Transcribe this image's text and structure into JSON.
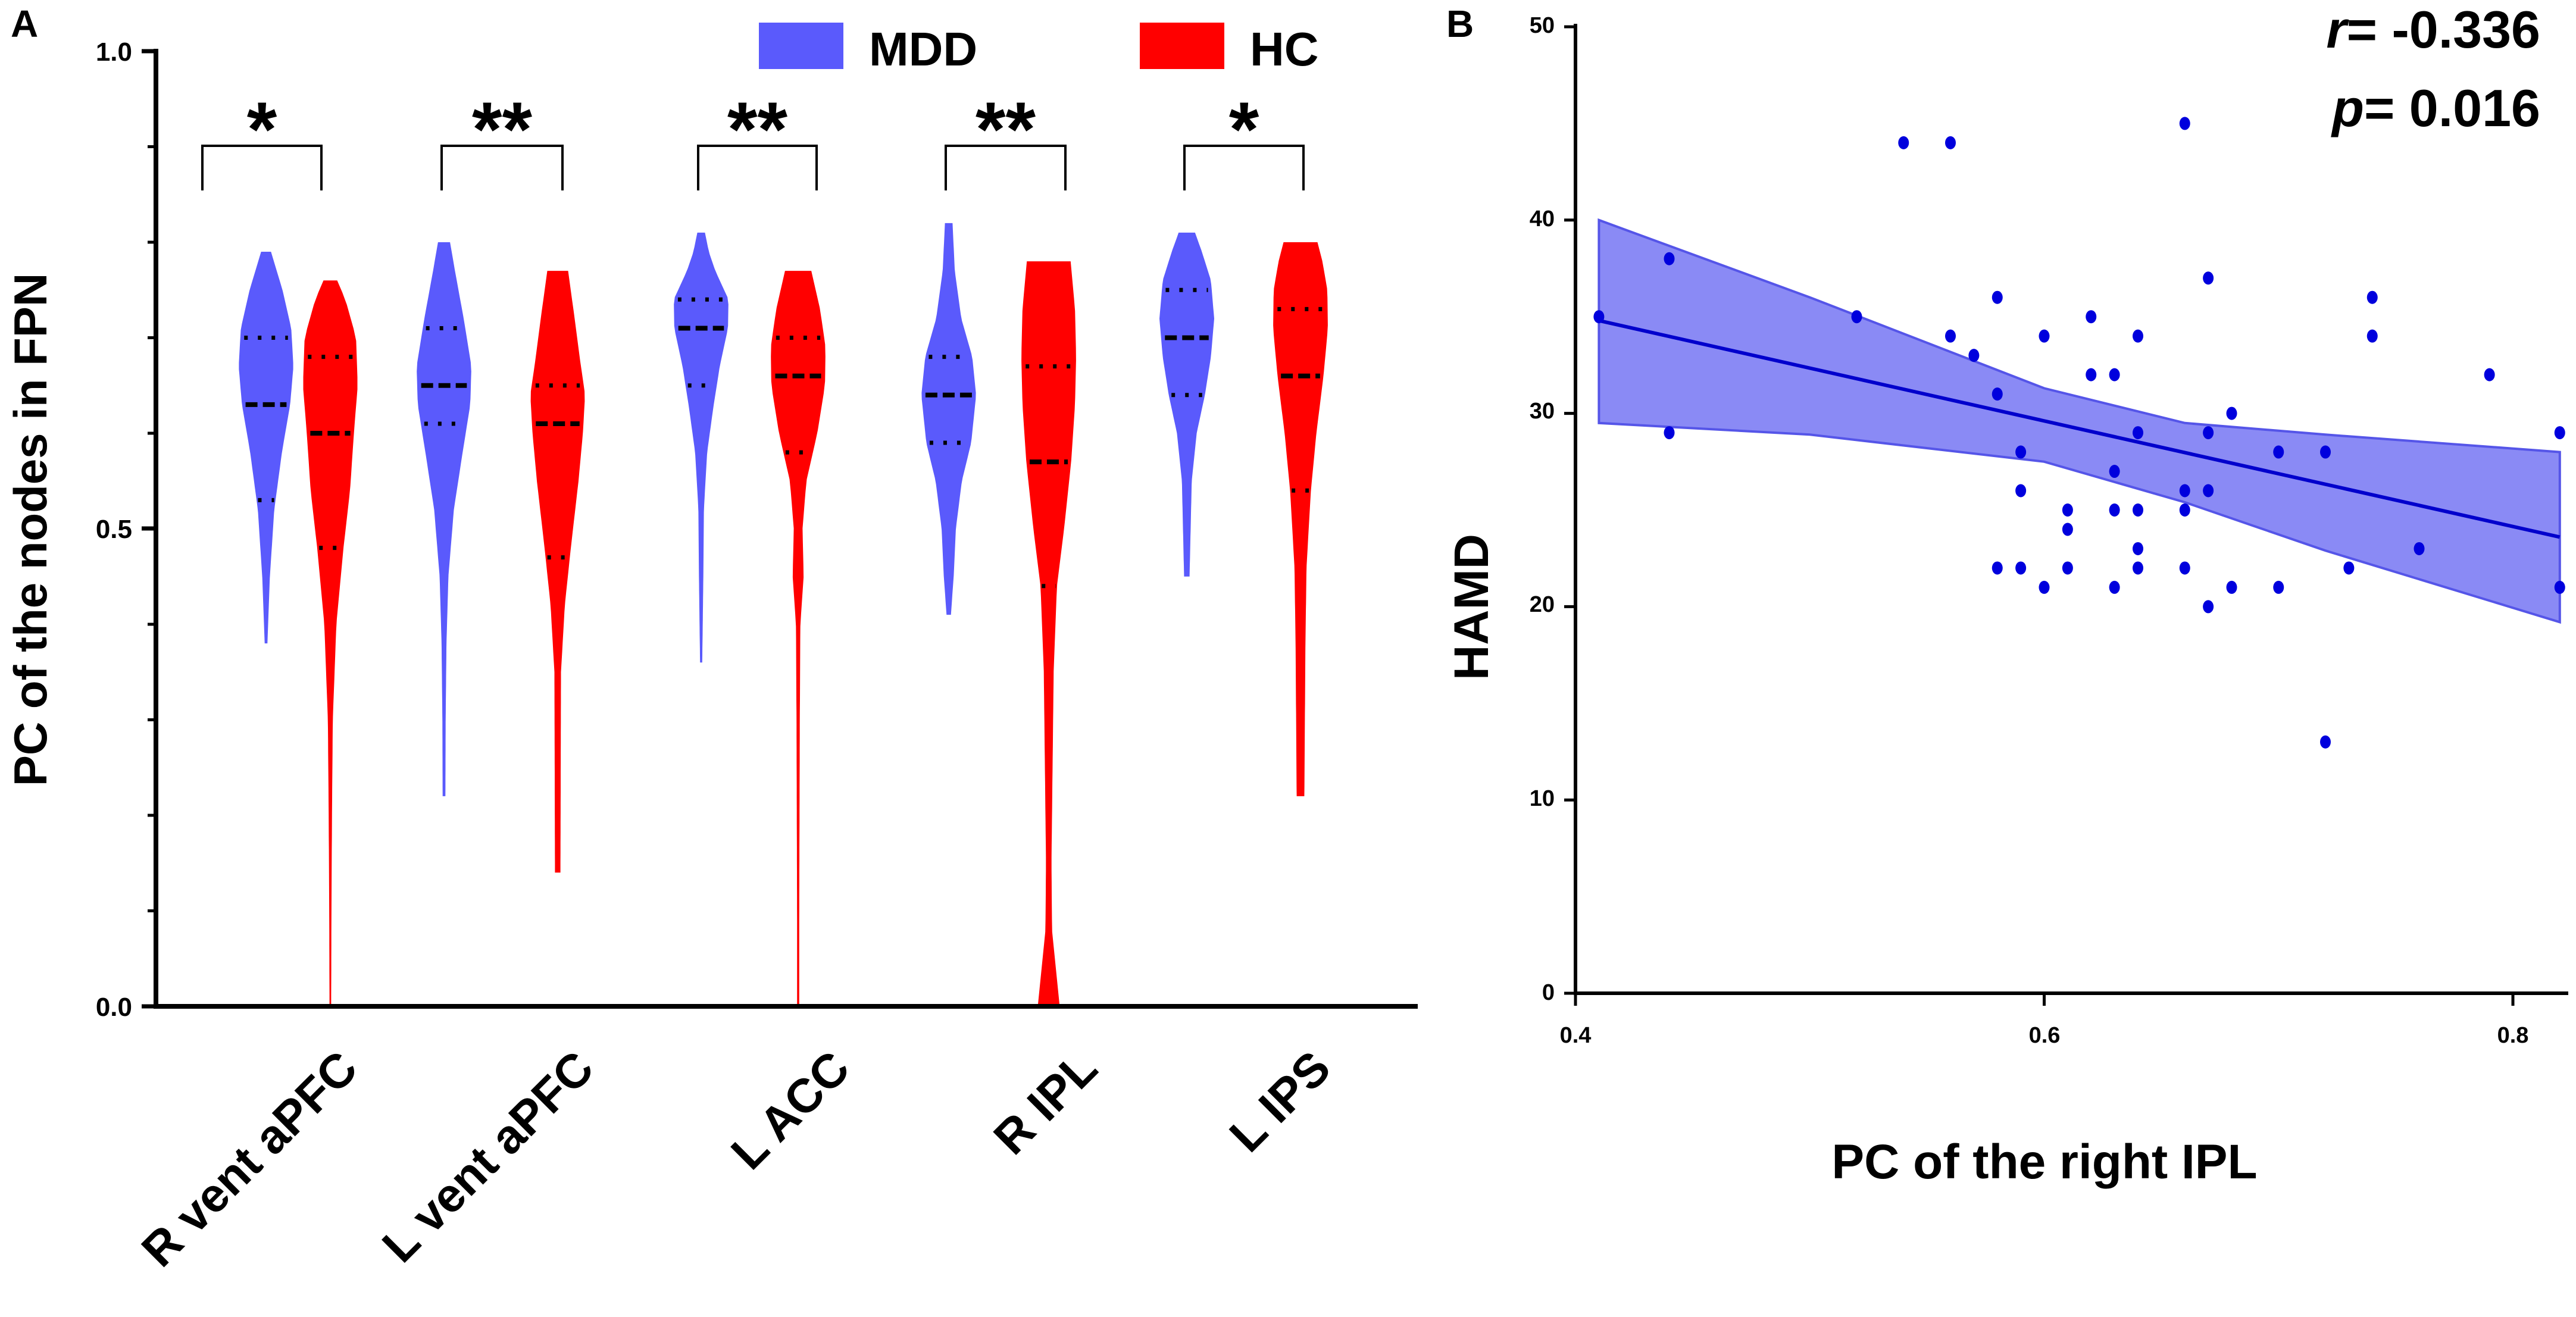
{
  "chart_data": [
    {
      "panel_label": "A",
      "type": "violin",
      "ylabel": "PC of the nodes in FPN",
      "ylim": [
        0.0,
        1.0
      ],
      "yticks": [
        "0.0",
        "0.5",
        "1.0"
      ],
      "legend": [
        {
          "name": "MDD",
          "color": "#5a5afc"
        },
        {
          "name": "HC",
          "color": "#ff0000"
        }
      ],
      "categories": [
        "R vent aPFC",
        "L vent aPFC",
        "L ACC",
        "R IPL",
        "L IPS"
      ],
      "significance": [
        "*",
        "**",
        "**",
        "**",
        "*"
      ],
      "groups": [
        {
          "category": "R vent aPFC",
          "MDD": {
            "min": 0.38,
            "max": 0.79,
            "q1": 0.53,
            "median": 0.63,
            "q3": 0.7,
            "profile": [
              [
                0.38,
                0.05
              ],
              [
                0.45,
                0.14
              ],
              [
                0.52,
                0.3
              ],
              [
                0.58,
                0.58
              ],
              [
                0.63,
                0.88
              ],
              [
                0.67,
                1.0
              ],
              [
                0.71,
                0.92
              ],
              [
                0.75,
                0.6
              ],
              [
                0.79,
                0.18
              ]
            ]
          },
          "HC": {
            "min": 0.0,
            "max": 0.76,
            "q1": 0.48,
            "median": 0.6,
            "q3": 0.68,
            "profile": [
              [
                0.0,
                0.03
              ],
              [
                0.1,
                0.04
              ],
              [
                0.2,
                0.06
              ],
              [
                0.3,
                0.09
              ],
              [
                0.4,
                0.22
              ],
              [
                0.48,
                0.48
              ],
              [
                0.54,
                0.72
              ],
              [
                0.6,
                0.86
              ],
              [
                0.65,
                1.0
              ],
              [
                0.7,
                0.94
              ],
              [
                0.74,
                0.55
              ],
              [
                0.76,
                0.25
              ]
            ]
          }
        },
        {
          "category": "L vent aPFC",
          "MDD": {
            "min": 0.22,
            "max": 0.8,
            "q1": 0.61,
            "median": 0.65,
            "q3": 0.71,
            "profile": [
              [
                0.22,
                0.05
              ],
              [
                0.3,
                0.06
              ],
              [
                0.38,
                0.09
              ],
              [
                0.45,
                0.16
              ],
              [
                0.52,
                0.36
              ],
              [
                0.58,
                0.68
              ],
              [
                0.63,
                0.96
              ],
              [
                0.67,
                1.0
              ],
              [
                0.72,
                0.72
              ],
              [
                0.77,
                0.4
              ],
              [
                0.8,
                0.22
              ]
            ]
          },
          "HC": {
            "min": 0.14,
            "max": 0.77,
            "q1": 0.47,
            "median": 0.61,
            "q3": 0.65,
            "profile": [
              [
                0.14,
                0.1
              ],
              [
                0.25,
                0.11
              ],
              [
                0.35,
                0.12
              ],
              [
                0.42,
                0.26
              ],
              [
                0.48,
                0.48
              ],
              [
                0.55,
                0.76
              ],
              [
                0.6,
                0.92
              ],
              [
                0.64,
                1.0
              ],
              [
                0.68,
                0.8
              ],
              [
                0.72,
                0.62
              ],
              [
                0.77,
                0.38
              ]
            ]
          }
        },
        {
          "category": "L ACC",
          "MDD": {
            "min": 0.36,
            "max": 0.81,
            "q1": 0.65,
            "median": 0.71,
            "q3": 0.74,
            "profile": [
              [
                0.36,
                0.04
              ],
              [
                0.45,
                0.08
              ],
              [
                0.52,
                0.1
              ],
              [
                0.58,
                0.22
              ],
              [
                0.63,
                0.46
              ],
              [
                0.67,
                0.68
              ],
              [
                0.71,
                0.98
              ],
              [
                0.74,
                1.0
              ],
              [
                0.77,
                0.52
              ],
              [
                0.79,
                0.28
              ],
              [
                0.81,
                0.14
              ]
            ]
          },
          "HC": {
            "min": 0.0,
            "max": 0.77,
            "q1": 0.58,
            "median": 0.66,
            "q3": 0.7,
            "profile": [
              [
                0.0,
                0.04
              ],
              [
                0.1,
                0.04
              ],
              [
                0.2,
                0.05
              ],
              [
                0.3,
                0.06
              ],
              [
                0.4,
                0.08
              ],
              [
                0.45,
                0.2
              ],
              [
                0.5,
                0.16
              ],
              [
                0.55,
                0.3
              ],
              [
                0.6,
                0.7
              ],
              [
                0.65,
                0.98
              ],
              [
                0.69,
                1.0
              ],
              [
                0.73,
                0.8
              ],
              [
                0.77,
                0.48
              ]
            ]
          }
        },
        {
          "category": "R IPL",
          "MDD": {
            "min": 0.41,
            "max": 0.82,
            "q1": 0.59,
            "median": 0.64,
            "q3": 0.68,
            "profile": [
              [
                0.41,
                0.08
              ],
              [
                0.45,
                0.18
              ],
              [
                0.5,
                0.26
              ],
              [
                0.55,
                0.48
              ],
              [
                0.59,
                0.82
              ],
              [
                0.64,
                1.0
              ],
              [
                0.68,
                0.86
              ],
              [
                0.72,
                0.46
              ],
              [
                0.77,
                0.22
              ],
              [
                0.82,
                0.14
              ]
            ]
          },
          "HC": {
            "min": 0.0,
            "max": 0.78,
            "q1": 0.44,
            "median": 0.57,
            "q3": 0.67,
            "profile": [
              [
                0.0,
                0.4
              ],
              [
                0.04,
                0.26
              ],
              [
                0.08,
                0.12
              ],
              [
                0.15,
                0.1
              ],
              [
                0.25,
                0.14
              ],
              [
                0.35,
                0.18
              ],
              [
                0.44,
                0.3
              ],
              [
                0.5,
                0.56
              ],
              [
                0.57,
                0.82
              ],
              [
                0.63,
                0.96
              ],
              [
                0.68,
                1.0
              ],
              [
                0.73,
                0.96
              ],
              [
                0.78,
                0.8
              ]
            ]
          }
        },
        {
          "category": "L IPS",
          "MDD": {
            "min": 0.45,
            "max": 0.81,
            "q1": 0.64,
            "median": 0.7,
            "q3": 0.75,
            "profile": [
              [
                0.45,
                0.1
              ],
              [
                0.5,
                0.14
              ],
              [
                0.55,
                0.18
              ],
              [
                0.6,
                0.36
              ],
              [
                0.64,
                0.66
              ],
              [
                0.68,
                0.88
              ],
              [
                0.72,
                1.0
              ],
              [
                0.76,
                0.88
              ],
              [
                0.79,
                0.55
              ],
              [
                0.81,
                0.3
              ]
            ]
          },
          "HC": {
            "min": 0.22,
            "max": 0.8,
            "q1": 0.54,
            "median": 0.66,
            "q3": 0.73,
            "profile": [
              [
                0.22,
                0.14
              ],
              [
                0.3,
                0.16
              ],
              [
                0.38,
                0.18
              ],
              [
                0.46,
                0.22
              ],
              [
                0.54,
                0.38
              ],
              [
                0.6,
                0.58
              ],
              [
                0.66,
                0.84
              ],
              [
                0.71,
                1.0
              ],
              [
                0.75,
                0.98
              ],
              [
                0.78,
                0.8
              ],
              [
                0.8,
                0.62
              ]
            ]
          }
        }
      ]
    },
    {
      "panel_label": "B",
      "type": "scatter",
      "xlabel": "PC of the right IPL",
      "ylabel": "HAMD",
      "xlim": [
        0.4,
        0.82
      ],
      "ylim": [
        0,
        50
      ],
      "xticks": [
        "0.4",
        "0.6",
        "0.8"
      ],
      "yticks": [
        "0",
        "10",
        "20",
        "30",
        "40",
        "50"
      ],
      "point_color": "#0000dd",
      "band_color": "#8a8af5",
      "stat_r_symbol": "r",
      "stat_r_value": "= -0.336",
      "stat_p_symbol": "p",
      "stat_p_value": "= 0.016",
      "fit_line": [
        [
          0.41,
          34.8
        ],
        [
          0.82,
          23.6
        ]
      ],
      "ci_upper": [
        [
          0.41,
          40.0
        ],
        [
          0.5,
          36.0
        ],
        [
          0.6,
          31.3
        ],
        [
          0.66,
          29.5
        ],
        [
          0.72,
          28.9
        ],
        [
          0.82,
          28.0
        ]
      ],
      "ci_lower": [
        [
          0.41,
          29.5
        ],
        [
          0.5,
          28.9
        ],
        [
          0.6,
          27.5
        ],
        [
          0.66,
          25.4
        ],
        [
          0.72,
          22.9
        ],
        [
          0.82,
          19.2
        ]
      ],
      "points": [
        [
          0.41,
          35
        ],
        [
          0.44,
          38
        ],
        [
          0.44,
          29
        ],
        [
          0.52,
          35
        ],
        [
          0.54,
          44
        ],
        [
          0.56,
          44
        ],
        [
          0.56,
          34
        ],
        [
          0.57,
          33
        ],
        [
          0.58,
          36
        ],
        [
          0.58,
          31
        ],
        [
          0.58,
          22
        ],
        [
          0.59,
          28
        ],
        [
          0.59,
          26
        ],
        [
          0.59,
          22
        ],
        [
          0.6,
          34
        ],
        [
          0.6,
          21
        ],
        [
          0.61,
          25
        ],
        [
          0.61,
          24
        ],
        [
          0.61,
          22
        ],
        [
          0.62,
          35
        ],
        [
          0.62,
          32
        ],
        [
          0.63,
          32
        ],
        [
          0.63,
          27
        ],
        [
          0.63,
          25
        ],
        [
          0.63,
          21
        ],
        [
          0.64,
          34
        ],
        [
          0.64,
          29
        ],
        [
          0.64,
          25
        ],
        [
          0.64,
          23
        ],
        [
          0.64,
          22
        ],
        [
          0.66,
          45
        ],
        [
          0.66,
          26
        ],
        [
          0.66,
          25
        ],
        [
          0.66,
          22
        ],
        [
          0.67,
          37
        ],
        [
          0.67,
          29
        ],
        [
          0.67,
          26
        ],
        [
          0.67,
          20
        ],
        [
          0.68,
          30
        ],
        [
          0.68,
          21
        ],
        [
          0.7,
          28
        ],
        [
          0.7,
          21
        ],
        [
          0.72,
          28
        ],
        [
          0.72,
          13
        ],
        [
          0.73,
          22
        ],
        [
          0.74,
          36
        ],
        [
          0.74,
          34
        ],
        [
          0.76,
          23
        ],
        [
          0.79,
          32
        ],
        [
          0.82,
          29
        ],
        [
          0.82,
          21
        ]
      ]
    }
  ]
}
